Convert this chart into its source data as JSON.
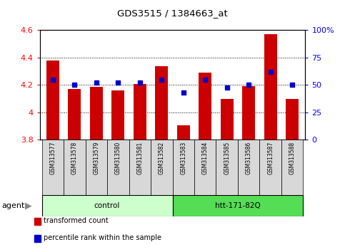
{
  "title": "GDS3515 / 1384663_at",
  "samples": [
    "GSM313577",
    "GSM313578",
    "GSM313579",
    "GSM313580",
    "GSM313581",
    "GSM313582",
    "GSM313583",
    "GSM313584",
    "GSM313585",
    "GSM313586",
    "GSM313587",
    "GSM313588"
  ],
  "bar_values": [
    4.38,
    4.17,
    4.185,
    4.16,
    4.21,
    4.335,
    3.905,
    4.29,
    4.1,
    4.19,
    4.57,
    4.1
  ],
  "percentile_values": [
    55,
    50,
    52,
    52,
    52,
    55,
    43,
    55,
    48,
    50,
    62,
    50
  ],
  "ymin": 3.8,
  "ymax": 4.6,
  "yticks": [
    3.8,
    4.0,
    4.2,
    4.4,
    4.6
  ],
  "ytick_labels": [
    "3.8",
    "4",
    "4.2",
    "4.4",
    "4.6"
  ],
  "y2ticks": [
    0,
    25,
    50,
    75,
    100
  ],
  "y2tick_labels": [
    "0",
    "25",
    "50",
    "75",
    "100%"
  ],
  "bar_color": "#cc0000",
  "percentile_color": "#0000cc",
  "groups": [
    {
      "label": "control",
      "start": 0,
      "end": 6,
      "color": "#ccffcc"
    },
    {
      "label": "htt-171-82Q",
      "start": 6,
      "end": 12,
      "color": "#55dd55"
    }
  ],
  "agent_label": "agent",
  "legend_items": [
    {
      "label": "transformed count",
      "color": "#cc0000"
    },
    {
      "label": "percentile rank within the sample",
      "color": "#0000cc"
    }
  ]
}
